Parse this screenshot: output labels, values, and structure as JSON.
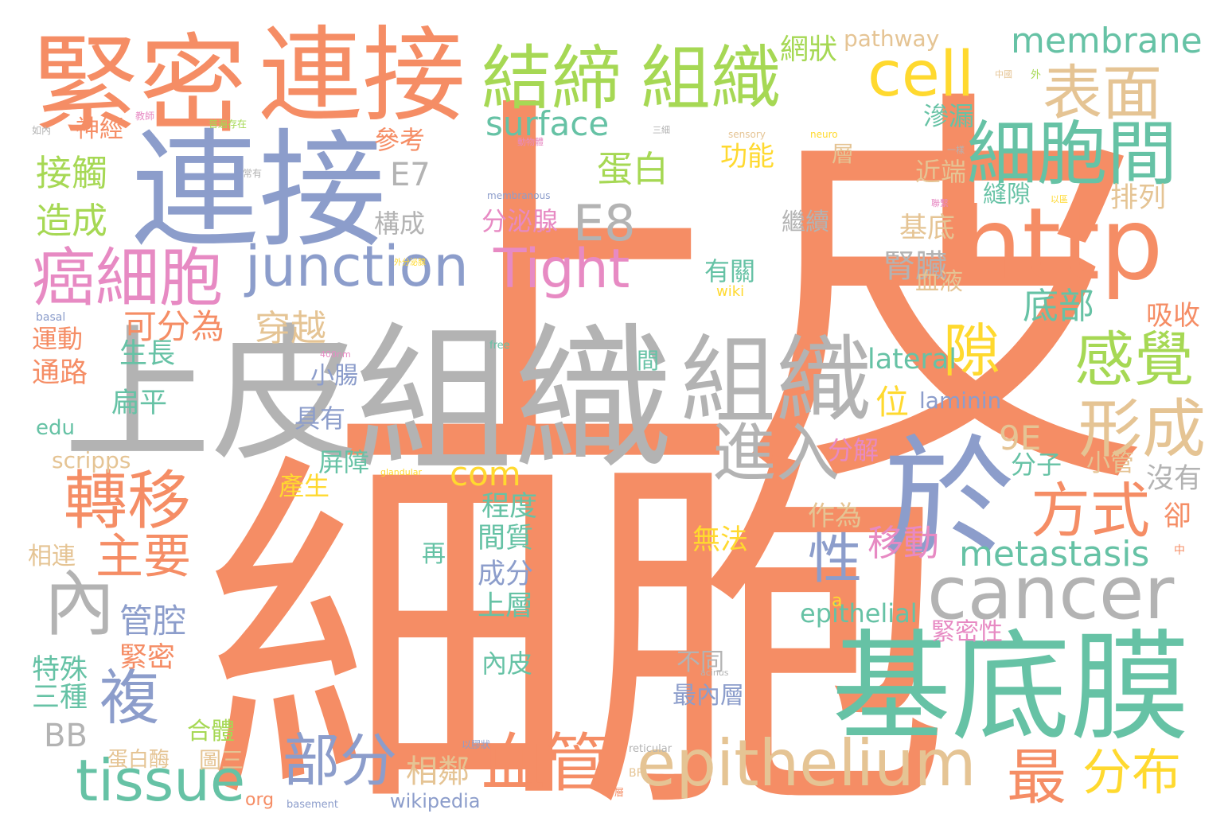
{
  "colors": {
    "salmon": "#f58d65",
    "gray": "#b3b3b3",
    "blue": "#8c9dcb",
    "teal": "#66c2a5",
    "green": "#a6d854",
    "yellow": "#ffd92f",
    "pink": "#e78ac3",
    "tan": "#e5c494"
  },
  "words": [
    "上皮",
    "細胞",
    "組織",
    "連接",
    "上皮",
    "緊密",
    "連接",
    "組織",
    "基底膜",
    "於",
    "http",
    "cell",
    "結締",
    "組織",
    "細胞間",
    "表面",
    "membrane",
    "癌細胞",
    "junction",
    "Tight",
    "E8",
    "E7",
    "epithelium",
    "cancer",
    "tissue",
    "血管",
    "部分",
    "隙",
    "感覺",
    "形成",
    "方式",
    "進入",
    "轉移",
    "複",
    "內",
    "最",
    "分布",
    "主要",
    "性",
    "移動",
    "metastasis",
    "surface",
    "蛋白",
    "接觸",
    "造成",
    "神經",
    "參考",
    "網狀",
    "pathway",
    "滲漏",
    "近端",
    "縫隙",
    "排列",
    "基底",
    "腎臟",
    "有關",
    "底部",
    "吸收",
    "可分",
    "為",
    "穿越",
    "生長",
    "通路",
    "運動",
    "lateral",
    "laminin",
    "位",
    "具有",
    "小腸",
    "扁平",
    "9E",
    "com",
    "分解",
    "分子",
    "小管",
    "沒有",
    "屏障",
    "產生",
    "scripps",
    "edu",
    "程度",
    "間質",
    "成分",
    "作為",
    "無法",
    "epithelial",
    "上層",
    "再",
    "緊密性",
    "內皮",
    "不同",
    "最內層",
    "特殊",
    "三種",
    "BB",
    "相鄰",
    "管腔",
    "緊密",
    "合體",
    "蛋白酶",
    "圖三",
    "wikipedia",
    "org",
    "相連",
    "卻",
    "構成",
    "分泌腺",
    "功能",
    "層",
    "繼續",
    "血液",
    "wiki",
    "間",
    "sensory",
    "neuro",
    "membranous",
    "free",
    "400nm",
    "glandular",
    "basal",
    "reticular",
    "basement",
    "acinus",
    "BF",
    "一層",
    "a",
    "中",
    "以膠狀",
    "外分泌腺",
    "普遍存在",
    "常有",
    "如內",
    "教師",
    "三細",
    "動物體",
    "一樣",
    "外",
    "中國",
    "聯繫",
    "以區"
  ]
}
